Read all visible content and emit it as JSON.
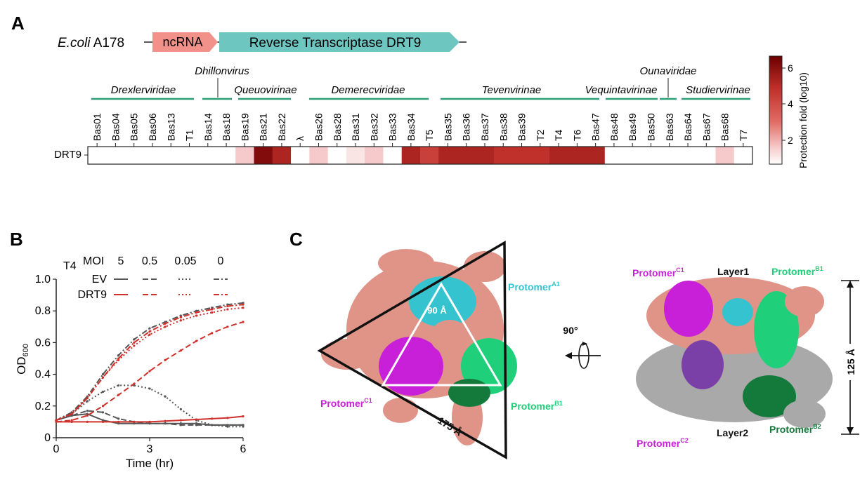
{
  "panel_a": {
    "letter": "A",
    "organism_italic": "E.coli",
    "organism_strain": "A178",
    "gene_ncrna": "ncRNA",
    "gene_rt": "Reverse Transcriptase DRT9",
    "row_label": "DRT9",
    "families": [
      {
        "name": "Drexlerviridae"
      },
      {
        "name": "Dhillonvirus"
      },
      {
        "name": "Queuovirinae"
      },
      {
        "name": "Demerecviridae"
      },
      {
        "name": "Tevenvirinae"
      },
      {
        "name": "Vequintavirinae"
      },
      {
        "name": "Ounaviridae"
      },
      {
        "name": "Studiervirinae"
      }
    ],
    "colorbar_label": "Protection fold (log10)",
    "colorbar_ticks": [
      "2",
      "4",
      "6"
    ]
  },
  "chart_data": [
    {
      "type": "heatmap",
      "row": "DRT9",
      "columns": [
        "Bas01",
        "Bas04",
        "Bas05",
        "Bas06",
        "Bas13",
        "T1",
        "Bas14",
        "Bas18",
        "Bas19",
        "Bas21",
        "Bas22",
        "λ",
        "Bas26",
        "Bas28",
        "Bas31",
        "Bas32",
        "Bas33",
        "Bas34",
        "T5",
        "Bas35",
        "Bas36",
        "Bas37",
        "Bas38",
        "Bas39",
        "T2",
        "T4",
        "T6",
        "Bas47",
        "Bas48",
        "Bas49",
        "Bas50",
        "Bas63",
        "Bas64",
        "Bas67",
        "Bas68",
        "T7"
      ],
      "values": [
        0,
        0,
        0,
        0,
        0,
        0,
        0,
        0,
        1,
        6,
        5,
        0,
        1,
        0,
        0.5,
        1,
        0,
        5,
        4,
        5,
        5,
        5,
        4.5,
        4.5,
        4.5,
        5,
        5,
        5,
        0,
        0,
        0,
        0,
        0,
        0,
        1,
        0
      ],
      "colorbar_range": [
        0,
        6.5
      ]
    },
    {
      "type": "line",
      "panel_letter": "B",
      "phage": "T4",
      "moi_label": "MOI",
      "moi_values": [
        "5",
        "0.5",
        "0.05",
        "0"
      ],
      "legend": [
        "EV",
        "DRT9"
      ],
      "xlabel": "Time (hr)",
      "ylabel": "OD600",
      "xlim": [
        0,
        6
      ],
      "ylim": [
        0,
        1.0
      ],
      "xticks": [
        "0",
        "3",
        "6"
      ],
      "yticks": [
        "0",
        "0.2",
        "0.4",
        "0.6",
        "0.8",
        "1.0"
      ],
      "x": [
        0,
        0.5,
        1,
        1.5,
        2,
        2.5,
        3,
        3.5,
        4,
        4.5,
        5,
        5.5,
        6
      ],
      "series": [
        {
          "name": "EV",
          "moi": "5",
          "color": "#555555",
          "dash": "",
          "values": [
            0.11,
            0.14,
            0.15,
            0.11,
            0.09,
            0.09,
            0.09,
            0.09,
            0.09,
            0.09,
            0.08,
            0.08,
            0.08
          ]
        },
        {
          "name": "EV",
          "moi": "0.5",
          "color": "#555555",
          "dash": "8 4",
          "values": [
            0.11,
            0.14,
            0.17,
            0.16,
            0.12,
            0.1,
            0.09,
            0.09,
            0.08,
            0.08,
            0.08,
            0.08,
            0.08
          ]
        },
        {
          "name": "EV",
          "moi": "0.05",
          "color": "#555555",
          "dash": "2 3",
          "values": [
            0.11,
            0.15,
            0.23,
            0.29,
            0.33,
            0.33,
            0.31,
            0.26,
            0.18,
            0.11,
            0.08,
            0.07,
            0.07
          ]
        },
        {
          "name": "EV",
          "moi": "0",
          "color": "#555555",
          "dash": "8 3 2 3",
          "values": [
            0.11,
            0.16,
            0.26,
            0.4,
            0.52,
            0.62,
            0.69,
            0.73,
            0.77,
            0.8,
            0.82,
            0.84,
            0.85
          ]
        },
        {
          "name": "DRT9",
          "moi": "5",
          "color": "#d0302b",
          "dash": "",
          "values": [
            0.1,
            0.1,
            0.1,
            0.1,
            0.1,
            0.1,
            0.1,
            0.105,
            0.11,
            0.115,
            0.12,
            0.125,
            0.135
          ]
        },
        {
          "name": "DRT9",
          "moi": "0.5",
          "color": "#d0302b",
          "dash": "8 4",
          "values": [
            0.1,
            0.11,
            0.14,
            0.2,
            0.27,
            0.34,
            0.42,
            0.49,
            0.55,
            0.61,
            0.66,
            0.7,
            0.73
          ]
        },
        {
          "name": "DRT9",
          "moi": "0.05",
          "color": "#d0302b",
          "dash": "2 3",
          "values": [
            0.11,
            0.15,
            0.25,
            0.38,
            0.49,
            0.58,
            0.65,
            0.7,
            0.74,
            0.77,
            0.79,
            0.81,
            0.82
          ]
        },
        {
          "name": "DRT9",
          "moi": "0",
          "color": "#d0302b",
          "dash": "8 3 2 3",
          "values": [
            0.11,
            0.15,
            0.25,
            0.38,
            0.5,
            0.6,
            0.67,
            0.72,
            0.76,
            0.79,
            0.81,
            0.83,
            0.84
          ]
        }
      ]
    }
  ],
  "panel_c": {
    "letter": "C",
    "distance_inner": "90 Å",
    "distance_edge": "175 Å",
    "rotation": "90°",
    "height_label": "125 Å",
    "layer1": "Layer1",
    "layer2": "Layer2",
    "protomer_a1_base": "Protomer",
    "protomer_a1_sup": "A1",
    "protomer_b1_base": "Protomer",
    "protomer_b1_sup": "B1",
    "protomer_c1_base": "Protomer",
    "protomer_c1_sup": "C1",
    "protomer_c2_base": "Protomer",
    "protomer_c2_sup": "C2",
    "protomer_b2_base": "Protomer",
    "protomer_b2_sup": "B2",
    "colors": {
      "cyan": "#35c4cf",
      "magenta": "#c81fd8",
      "green": "#1fcf7a",
      "darkgreen": "#137a3c",
      "salmon": "#e09488",
      "grey": "#a9a9a9",
      "violet": "#7b3fa8"
    }
  }
}
